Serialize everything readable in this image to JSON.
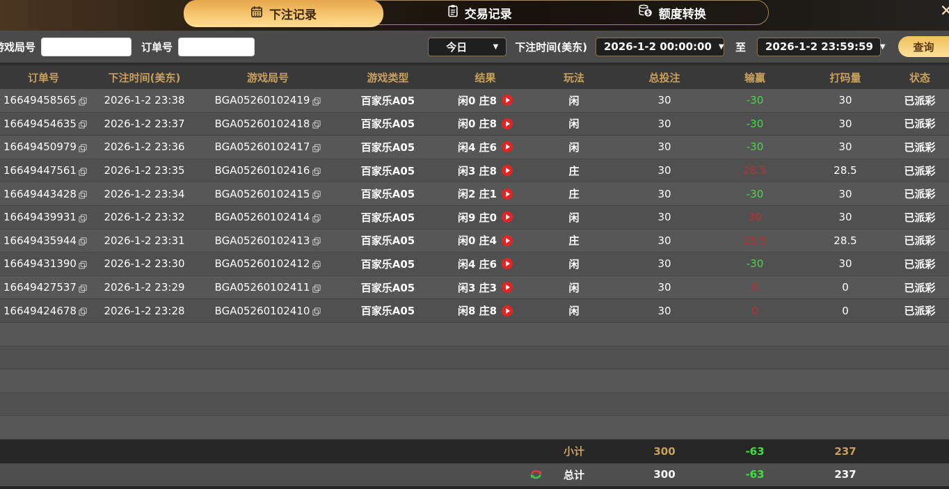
{
  "window": {
    "close_icon": "✕"
  },
  "icons": {
    "dropdown": "▼"
  },
  "tabs": [
    {
      "label": "下注记录",
      "active": true
    },
    {
      "label": "交易记录",
      "active": false
    },
    {
      "label": "额度转换",
      "active": false
    }
  ],
  "filters": {
    "game_round_label": "游戏局号",
    "order_label": "订单号",
    "game_round_value": "",
    "order_value": "",
    "range_selected": "今日",
    "bet_time_label": "下注时间(美东)",
    "start_time": "2026-1-2 00:00:00",
    "to_label": "至",
    "end_time": "2026-1-2 23:59:59",
    "search_button": "查询"
  },
  "table": {
    "headers": [
      "订单号",
      "下注时间(美东)",
      "游戏局号",
      "游戏类型",
      "结果",
      "玩法",
      "总投注",
      "输赢",
      "打码量",
      "状态"
    ],
    "rows": [
      {
        "order": "16649458565",
        "time": "2026-1-2 23:38",
        "round": "BGA05260102419",
        "game": "百家乐A05",
        "result": "闲0 庄8",
        "play": "闲",
        "bet": "30",
        "winloss": "-30",
        "turnover": "30",
        "status": "已派彩"
      },
      {
        "order": "16649454635",
        "time": "2026-1-2 23:37",
        "round": "BGA05260102418",
        "game": "百家乐A05",
        "result": "闲0 庄8",
        "play": "闲",
        "bet": "30",
        "winloss": "-30",
        "turnover": "30",
        "status": "已派彩"
      },
      {
        "order": "16649450979",
        "time": "2026-1-2 23:36",
        "round": "BGA05260102417",
        "game": "百家乐A05",
        "result": "闲4 庄6",
        "play": "闲",
        "bet": "30",
        "winloss": "-30",
        "turnover": "30",
        "status": "已派彩"
      },
      {
        "order": "16649447561",
        "time": "2026-1-2 23:35",
        "round": "BGA05260102416",
        "game": "百家乐A05",
        "result": "闲3 庄8",
        "play": "庄",
        "bet": "30",
        "winloss": "28.5",
        "turnover": "28.5",
        "status": "已派彩"
      },
      {
        "order": "16649443428",
        "time": "2026-1-2 23:34",
        "round": "BGA05260102415",
        "game": "百家乐A05",
        "result": "闲2 庄1",
        "play": "庄",
        "bet": "30",
        "winloss": "-30",
        "turnover": "30",
        "status": "已派彩"
      },
      {
        "order": "16649439931",
        "time": "2026-1-2 23:32",
        "round": "BGA05260102414",
        "game": "百家乐A05",
        "result": "闲9 庄0",
        "play": "闲",
        "bet": "30",
        "winloss": "30",
        "turnover": "30",
        "status": "已派彩"
      },
      {
        "order": "16649435944",
        "time": "2026-1-2 23:31",
        "round": "BGA05260102413",
        "game": "百家乐A05",
        "result": "闲0 庄4",
        "play": "庄",
        "bet": "30",
        "winloss": "28.5",
        "turnover": "28.5",
        "status": "已派彩"
      },
      {
        "order": "16649431390",
        "time": "2026-1-2 23:30",
        "round": "BGA05260102412",
        "game": "百家乐A05",
        "result": "闲4 庄6",
        "play": "闲",
        "bet": "30",
        "winloss": "-30",
        "turnover": "30",
        "status": "已派彩"
      },
      {
        "order": "16649427537",
        "time": "2026-1-2 23:29",
        "round": "BGA05260102411",
        "game": "百家乐A05",
        "result": "闲3 庄3",
        "play": "闲",
        "bet": "30",
        "winloss": "0",
        "turnover": "0",
        "status": "已派彩"
      },
      {
        "order": "16649424678",
        "time": "2026-1-2 23:28",
        "round": "BGA05260102410",
        "game": "百家乐A05",
        "result": "闲8 庄8",
        "play": "闲",
        "bet": "30",
        "winloss": "0",
        "turnover": "0",
        "status": "已派彩"
      }
    ],
    "subtotal": {
      "label": "小计",
      "bet": "300",
      "winloss": "-63",
      "turnover": "237"
    },
    "total": {
      "label": "总计",
      "bet": "300",
      "winloss": "-63",
      "turnover": "237"
    }
  },
  "colors": {
    "accent_gold": "#f3c169",
    "header_text": "#c9a05c",
    "loss_green": "#3fdf3f",
    "win_red": "#c02e2e",
    "row_bg": "#575757"
  }
}
